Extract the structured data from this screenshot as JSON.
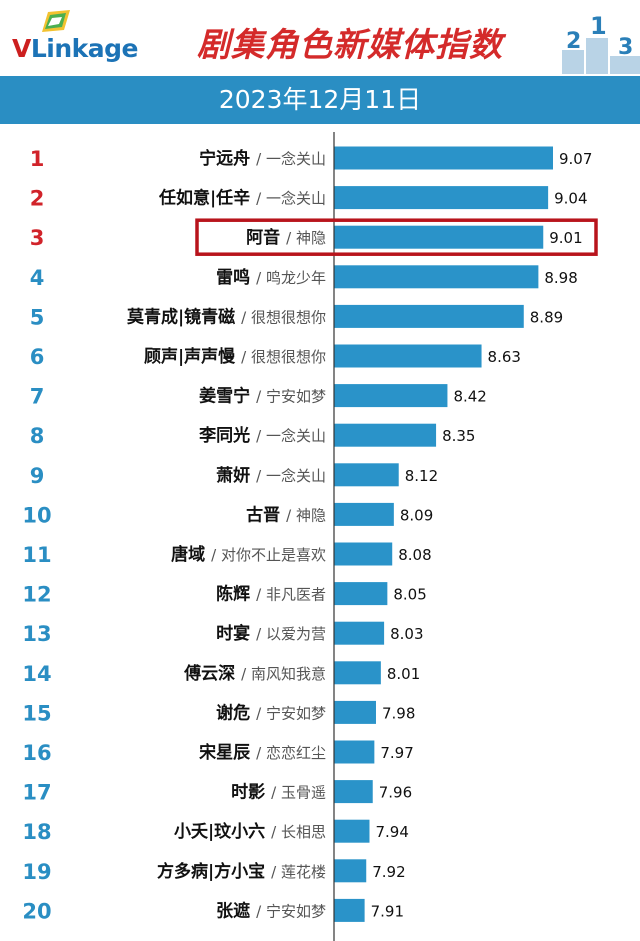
{
  "brand": {
    "logo_v": "V",
    "logo_rest": "Linkage"
  },
  "title": "剧集角色新媒体指数",
  "date": "2023年12月11日",
  "colors": {
    "bar": "#2a93c9",
    "band": "#2a8ec3",
    "top_rank": "#d1232a",
    "rank": "#2a8ec3",
    "highlight": "#b8141c",
    "title": "#d42a2a"
  },
  "chart_data": {
    "type": "bar",
    "orientation": "horizontal",
    "title": "剧集角色新媒体指数",
    "subtitle": "2023年12月11日",
    "highlight_rank": 3,
    "items": [
      {
        "rank": "1",
        "name": "宁远舟",
        "show": "/ 一念关山",
        "value": 9.07
      },
      {
        "rank": "2",
        "name": "任如意|任辛",
        "show": "/ 一念关山",
        "value": 9.04
      },
      {
        "rank": "3",
        "name": "阿音",
        "show": "/ 神隐",
        "value": 9.01
      },
      {
        "rank": "4",
        "name": "雷鸣",
        "show": "/ 鸣龙少年",
        "value": 8.98
      },
      {
        "rank": "5",
        "name": "莫青成|镜青磁",
        "show": "/ 很想很想你",
        "value": 8.89
      },
      {
        "rank": "6",
        "name": "顾声|声声慢",
        "show": "/ 很想很想你",
        "value": 8.63
      },
      {
        "rank": "7",
        "name": "姜雪宁",
        "show": "/ 宁安如梦",
        "value": 8.42
      },
      {
        "rank": "8",
        "name": "李同光",
        "show": "/ 一念关山",
        "value": 8.35
      },
      {
        "rank": "9",
        "name": "萧妍",
        "show": "/ 一念关山",
        "value": 8.12
      },
      {
        "rank": "10",
        "name": "古晋",
        "show": "/ 神隐",
        "value": 8.09
      },
      {
        "rank": "11",
        "name": "唐域",
        "show": "/ 对你不止是喜欢",
        "value": 8.08
      },
      {
        "rank": "12",
        "name": "陈辉",
        "show": "/ 非凡医者",
        "value": 8.05
      },
      {
        "rank": "13",
        "name": "时宴",
        "show": "/ 以爱为营",
        "value": 8.03
      },
      {
        "rank": "14",
        "name": "傅云深",
        "show": "/ 南风知我意",
        "value": 8.01
      },
      {
        "rank": "15",
        "name": "谢危",
        "show": "/ 宁安如梦",
        "value": 7.98
      },
      {
        "rank": "16",
        "name": "宋星辰",
        "show": "/ 恋恋红尘",
        "value": 7.97
      },
      {
        "rank": "17",
        "name": "时影",
        "show": "/ 玉骨遥",
        "value": 7.96
      },
      {
        "rank": "18",
        "name": "小夭|玟小六",
        "show": "/ 长相思",
        "value": 7.94
      },
      {
        "rank": "19",
        "name": "方多病|方小宝",
        "show": "/ 莲花楼",
        "value": 7.92
      },
      {
        "rank": "20",
        "name": "张遮",
        "show": "/ 宁安如梦",
        "value": 7.91
      }
    ]
  }
}
